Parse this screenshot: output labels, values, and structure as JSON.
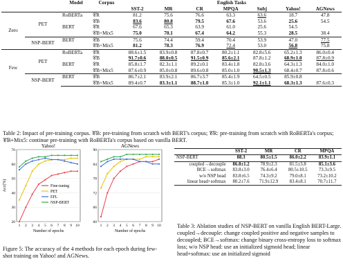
{
  "table2": {
    "header": {
      "model": "Model",
      "corpus": "Corpus",
      "tasks": "English Tasks",
      "cols": [
        "SST-2",
        "MR",
        "CR",
        "MPQA",
        "Subj",
        "Yahoo!",
        "AGNews"
      ]
    },
    "groups": [
      {
        "label": "Zero",
        "methods": [
          {
            "name": "PET",
            "rows": [
              {
                "model": "RoBERTa",
                "corpus": "𝒞R",
                "vals": [
                  "81.2",
                  "75.6",
                  "76.6",
                  "63.3",
                  "63.6",
                  "18.7",
                  "47.8"
                ]
              },
              {
                "model": "",
                "corpus": "𝒞B",
                "vals": [
                  "83.6",
                  "80.8",
                  "79.5",
                  "67.6",
                  "53.6",
                  "25.6",
                  "54.5"
                ]
              },
              {
                "model": "BERT",
                "corpus": "𝒞R",
                "vals": [
                  "67.6",
                  "65.3",
                  "63.9",
                  "61.0",
                  "25.6",
                  "54.5",
                  ""
                ]
              },
              {
                "model": "",
                "corpus": "𝒞B+Mix5",
                "vals": [
                  "75.0",
                  "70.1",
                  "67.4",
                  "64.2",
                  "55.3",
                  "28.5",
                  "38.4"
                ]
              }
            ]
          },
          {
            "name": "NSP-BERT",
            "rows": [
              {
                "model": "BERT",
                "corpus": "𝒞B",
                "vals": [
                  "75.6",
                  "74.4",
                  "59.4",
                  "70.4",
                  "53.9",
                  "47.0",
                  "77.5"
                ]
              },
              {
                "model": "",
                "corpus": "𝒞B+Mix5",
                "vals": [
                  "81.2",
                  "78.3",
                  "76.9",
                  "72.4",
                  "53.0",
                  "56.8",
                  "75.8"
                ]
              }
            ]
          }
        ]
      },
      {
        "label": "Few",
        "methods": [
          {
            "name": "PET",
            "rows": [
              {
                "model": "RoBERTa",
                "corpus": "𝒞R",
                "vals": [
                  "88.6±1.5",
                  "83.9±0.8",
                  "87.8±0.7",
                  "80.2±1.1",
                  "82.8±5.6",
                  "65.2±1.3",
                  "86.0±0.4"
                ]
              },
              {
                "model": "",
                "corpus": "𝒞B",
                "vals": [
                  "91.7±0.6",
                  "88.0±0.5",
                  "91.5±0.9",
                  "85.6±2.1",
                  "87.8±1.2",
                  "68.9±1.0",
                  "87.8±0.9"
                ]
              },
              {
                "model": "BERT",
                "corpus": "𝒞R",
                "vals": [
                  "85.8±1.7",
                  "82.3±1.1",
                  "89.2±0.1",
                  "83.4±1.8",
                  "82.8±3.6",
                  "64.3±1.3",
                  "84.0±1.0"
                ]
              },
              {
                "model": "",
                "corpus": "𝒞B+Mix5",
                "vals": [
                  "87.6±0.9",
                  "85.0±0.8",
                  "89.6±0.8",
                  "85.0±1.0",
                  "90.5±1.3",
                  "68.4±0.7",
                  "87.8±0.6"
                ]
              }
            ]
          },
          {
            "name": "NSP-BERT",
            "rows": [
              {
                "model": "BERT",
                "corpus": "𝒞B",
                "vals": [
                  "86.7±2.1",
                  "83.9±2.1",
                  "86.7±3.7",
                  "85.4±1.9",
                  "64.5±0.5",
                  "85.9±0.8",
                  ""
                ]
              },
              {
                "model": "",
                "corpus": "𝒞B+Mix5",
                "vals": [
                  "89.4±0.7",
                  "83.3±1.1",
                  "88.7±1.0",
                  "85.3±1.0",
                  "92.1±1.1",
                  "68.3±1.3",
                  "87.6±0.3"
                ]
              }
            ]
          }
        ]
      }
    ],
    "caption": "Table 2: Impact of pre-training corpus. 𝒞B: pre-training from scratch with BERT's corpus; 𝒞R: pre-training from scratch with RoBERTa's corpus; 𝒞B+Mix5: continue pre-training with RoBERTa's corpus based on vanilla BERT."
  },
  "figure5": {
    "caption": "Figure 5: The accuracy of the 4 methods for each epoch during few-shot training on Yahoo! and AGNews.",
    "legend": [
      "Fine-tuning",
      "PET",
      "EFL",
      "NSP-BERT"
    ],
    "colors": {
      "Fine-tuning": "#e8404a",
      "PET": "#e5c400",
      "EFL": "#3a6bd1",
      "NSP-BERT": "#2faa4a"
    },
    "ylabel": "Acc(%)",
    "xlabel": "Number of epochs"
  },
  "chart_data": [
    {
      "type": "line",
      "title": "Yahoo!",
      "xlabel": "Number of epochs",
      "ylabel": "Acc(%)",
      "x": [
        1,
        2,
        3,
        4,
        5,
        6,
        7,
        8,
        9,
        10
      ],
      "ylim": [
        20,
        70
      ],
      "series": [
        {
          "name": "Fine-tuning",
          "values": [
            20,
            30,
            39,
            46,
            49,
            52,
            53,
            54,
            55,
            55
          ]
        },
        {
          "name": "PET",
          "values": [
            35,
            45,
            55,
            60,
            62,
            63,
            63,
            63,
            64,
            64
          ]
        },
        {
          "name": "EFL",
          "values": [
            56,
            60,
            62,
            63,
            64,
            63,
            63,
            62,
            61,
            60
          ]
        },
        {
          "name": "NSP-BERT",
          "values": [
            58,
            62,
            64,
            65,
            65,
            66,
            66,
            66,
            66,
            66
          ]
        }
      ]
    },
    {
      "type": "line",
      "title": "AGNews",
      "xlabel": "Number of epochs",
      "ylabel": "",
      "x": [
        1,
        2,
        3,
        4,
        5,
        6,
        7,
        8,
        9,
        10
      ],
      "ylim": [
        60,
        90
      ],
      "series": [
        {
          "name": "Fine-tuning",
          "values": [
            62,
            72,
            78,
            81,
            83,
            84,
            85,
            85,
            85,
            86
          ]
        },
        {
          "name": "PET",
          "values": [
            74,
            80,
            83,
            85,
            86,
            86,
            86,
            87,
            87,
            87
          ]
        },
        {
          "name": "EFL",
          "values": [
            83,
            85,
            86,
            86,
            86,
            86,
            85,
            85,
            84,
            84
          ]
        },
        {
          "name": "NSP-BERT",
          "values": [
            85,
            86,
            87,
            87,
            88,
            88,
            88,
            88,
            88,
            88
          ]
        }
      ]
    }
  ],
  "table3": {
    "cols": [
      "SST-2",
      "MR",
      "CR",
      "MPQA"
    ],
    "rows": [
      {
        "name": "NSP-BERT",
        "vals": [
          "88.3",
          "80.5±1.5",
          "86.0±2.2",
          "83.9±1.1"
        ]
      },
      {
        "name": "coupled→decouple",
        "vals": [
          "86.8±1.2",
          "78.9±2.3",
          "81.5±3.8",
          "85.1±3.6"
        ]
      },
      {
        "name": "BCE→softmax",
        "vals": [
          "83.8±3.0",
          "76.4±6.4",
          "80.5±10.5",
          "73.3±9.5"
        ]
      },
      {
        "name": "w/o NSP head",
        "vals": [
          "83.8±6.5",
          "74.3±9.2",
          "79.0±8.1",
          "73.2±10.2"
        ]
      },
      {
        "name": "linear head+softmax",
        "vals": [
          "80.2±7.6",
          "71.9±12.9",
          "83.4±8.1",
          "70.7±11.7"
        ]
      }
    ],
    "caption": "Table 3: Ablation studies of NSP-BERT on vanilla English BERT-Large. coupled→decouple: change coupled positive and negative samples to decoupled; BCE→softmax: change binary cross-entropy loss to softmax loss; w/o NSP head: use an initialized sigmoid head; linear head+softmax: use an initialized sigmoid"
  }
}
